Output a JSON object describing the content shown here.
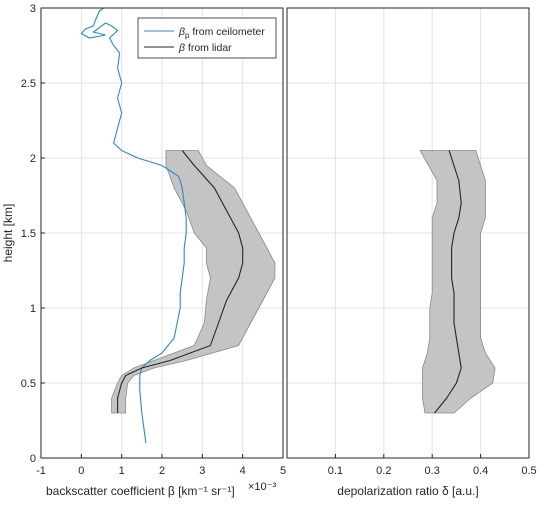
{
  "chart_data": [
    {
      "type": "line",
      "panel": "left",
      "xlabel": "backscatter coefficient β [km⁻¹ sr⁻¹]",
      "xlabel_multiplier": "×10⁻³",
      "ylabel": "height [km]",
      "xlim": [
        -1,
        5
      ],
      "ylim": [
        0,
        3
      ],
      "xticks": [
        "-1",
        "0",
        "1",
        "2",
        "3",
        "4",
        "5"
      ],
      "yticks": [
        "0",
        "0.5",
        "1",
        "1.5",
        "2",
        "2.5",
        "3"
      ],
      "grid": true,
      "legend_position": "top-right",
      "series": [
        {
          "name": "βp from ceilometer",
          "legend_main": "β",
          "legend_sub": "p",
          "legend_rest": " from ceilometer",
          "color": "#2b8cc4",
          "x": [
            1.6,
            1.5,
            1.45,
            1.45,
            1.5,
            1.7,
            2.0,
            2.3,
            2.45,
            2.45,
            2.5,
            2.55,
            2.55,
            2.6,
            2.6,
            2.55,
            2.5,
            2.45,
            2.4,
            2.0,
            1.4,
            1.0,
            0.8,
            0.9,
            1.0,
            0.9,
            1.0,
            0.9,
            0.95,
            0.8,
            0.7,
            0.9,
            0.75,
            0.6,
            0.5,
            0.4,
            0.3,
            0.6,
            0.2,
            0.0,
            0.1,
            0.3,
            0.35,
            0.4,
            0.45,
            0.55
          ],
          "y": [
            0.1,
            0.3,
            0.45,
            0.55,
            0.6,
            0.65,
            0.7,
            0.8,
            1.0,
            1.1,
            1.2,
            1.3,
            1.4,
            1.5,
            1.6,
            1.7,
            1.8,
            1.85,
            1.88,
            1.95,
            2.0,
            2.05,
            2.1,
            2.2,
            2.3,
            2.4,
            2.5,
            2.6,
            2.7,
            2.75,
            2.8,
            2.85,
            2.88,
            2.9,
            2.88,
            2.86,
            2.84,
            2.82,
            2.8,
            2.83,
            2.86,
            2.88,
            2.92,
            2.95,
            2.98,
            3.0
          ]
        },
        {
          "name": "β from lidar",
          "legend_main": "β",
          "legend_sub": "",
          "legend_rest": " from lidar",
          "color": "#262626",
          "x": [
            0.9,
            0.9,
            1.0,
            1.1,
            1.5,
            2.2,
            3.2,
            3.4,
            3.6,
            3.9,
            4.0,
            4.0,
            3.9,
            3.6,
            3.3,
            2.8,
            2.5
          ],
          "y": [
            0.3,
            0.4,
            0.5,
            0.55,
            0.6,
            0.65,
            0.75,
            0.9,
            1.05,
            1.2,
            1.3,
            1.4,
            1.5,
            1.65,
            1.8,
            1.95,
            2.05
          ],
          "band_lower": [
            0.75,
            0.75,
            0.9,
            1.0,
            1.3,
            1.8,
            2.8,
            3.05,
            3.1,
            3.2,
            3.1,
            3.1,
            2.8,
            2.6,
            2.3,
            2.1,
            2.1
          ],
          "band_upper": [
            1.1,
            1.1,
            1.15,
            1.3,
            1.8,
            2.6,
            3.9,
            4.2,
            4.5,
            4.8,
            4.8,
            4.6,
            4.4,
            4.1,
            3.8,
            3.1,
            2.9
          ]
        }
      ]
    },
    {
      "type": "line",
      "panel": "right",
      "xlabel": "depolarization ratio δ [a.u.]",
      "xlim": [
        0,
        0.5
      ],
      "ylim": [
        0,
        3
      ],
      "xticks": [
        "0.1",
        "0.2",
        "0.3",
        "0.4",
        "0.5"
      ],
      "grid": true,
      "series": [
        {
          "name": "δ",
          "color": "#262626",
          "x": [
            0.305,
            0.33,
            0.35,
            0.36,
            0.355,
            0.35,
            0.345,
            0.345,
            0.345,
            0.34,
            0.34,
            0.34,
            0.345,
            0.355,
            0.36,
            0.355,
            0.335
          ],
          "y": [
            0.3,
            0.4,
            0.5,
            0.6,
            0.7,
            0.8,
            0.9,
            1.0,
            1.1,
            1.2,
            1.3,
            1.4,
            1.5,
            1.6,
            1.7,
            1.85,
            2.05
          ],
          "band_lower": [
            0.285,
            0.28,
            0.28,
            0.28,
            0.29,
            0.295,
            0.295,
            0.295,
            0.3,
            0.3,
            0.3,
            0.3,
            0.3,
            0.3,
            0.31,
            0.31,
            0.275
          ],
          "band_upper": [
            0.345,
            0.38,
            0.425,
            0.43,
            0.41,
            0.4,
            0.4,
            0.4,
            0.4,
            0.4,
            0.4,
            0.4,
            0.4,
            0.41,
            0.41,
            0.41,
            0.39
          ]
        }
      ]
    }
  ]
}
